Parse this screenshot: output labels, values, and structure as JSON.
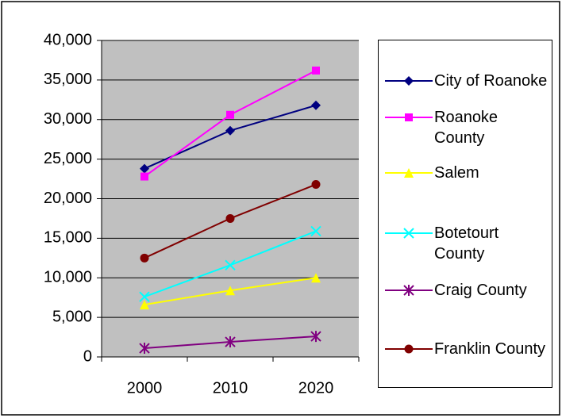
{
  "chart_data": {
    "type": "line",
    "categories": [
      "2000",
      "2010",
      "2020"
    ],
    "series": [
      {
        "name": "City of Roanoke",
        "color": "#000080",
        "marker": "diamond",
        "values": [
          23800,
          28600,
          31800
        ]
      },
      {
        "name": "Roanoke County",
        "color": "#ff00ff",
        "marker": "square",
        "values": [
          22800,
          30600,
          36200
        ]
      },
      {
        "name": "Salem",
        "color": "#ffff00",
        "marker": "triangle",
        "values": [
          6600,
          8400,
          10000
        ]
      },
      {
        "name": "Botetourt County",
        "color": "#00ffff",
        "marker": "x",
        "values": [
          7600,
          11600,
          15900
        ]
      },
      {
        "name": "Craig County",
        "color": "#800080",
        "marker": "star",
        "values": [
          1100,
          1900,
          2600
        ]
      },
      {
        "name": "Franklin County",
        "color": "#800000",
        "marker": "circle",
        "values": [
          12500,
          17500,
          21800
        ]
      }
    ],
    "ylim": [
      0,
      40000
    ],
    "yticks": [
      0,
      {
        "value": 5000,
        "label": "5,000"
      },
      {
        "value": 10000,
        "label": "10,000"
      },
      {
        "value": 15000,
        "label": "15,000"
      },
      {
        "value": 20000,
        "label": "20,000"
      },
      {
        "value": 25000,
        "label": "25,000"
      },
      {
        "value": 30000,
        "label": "30,000"
      },
      {
        "value": 35000,
        "label": "35,000"
      },
      {
        "value": 40000,
        "label": "40,000"
      }
    ],
    "grid": true,
    "plot_background": "#c0c0c0",
    "legend": "right"
  }
}
